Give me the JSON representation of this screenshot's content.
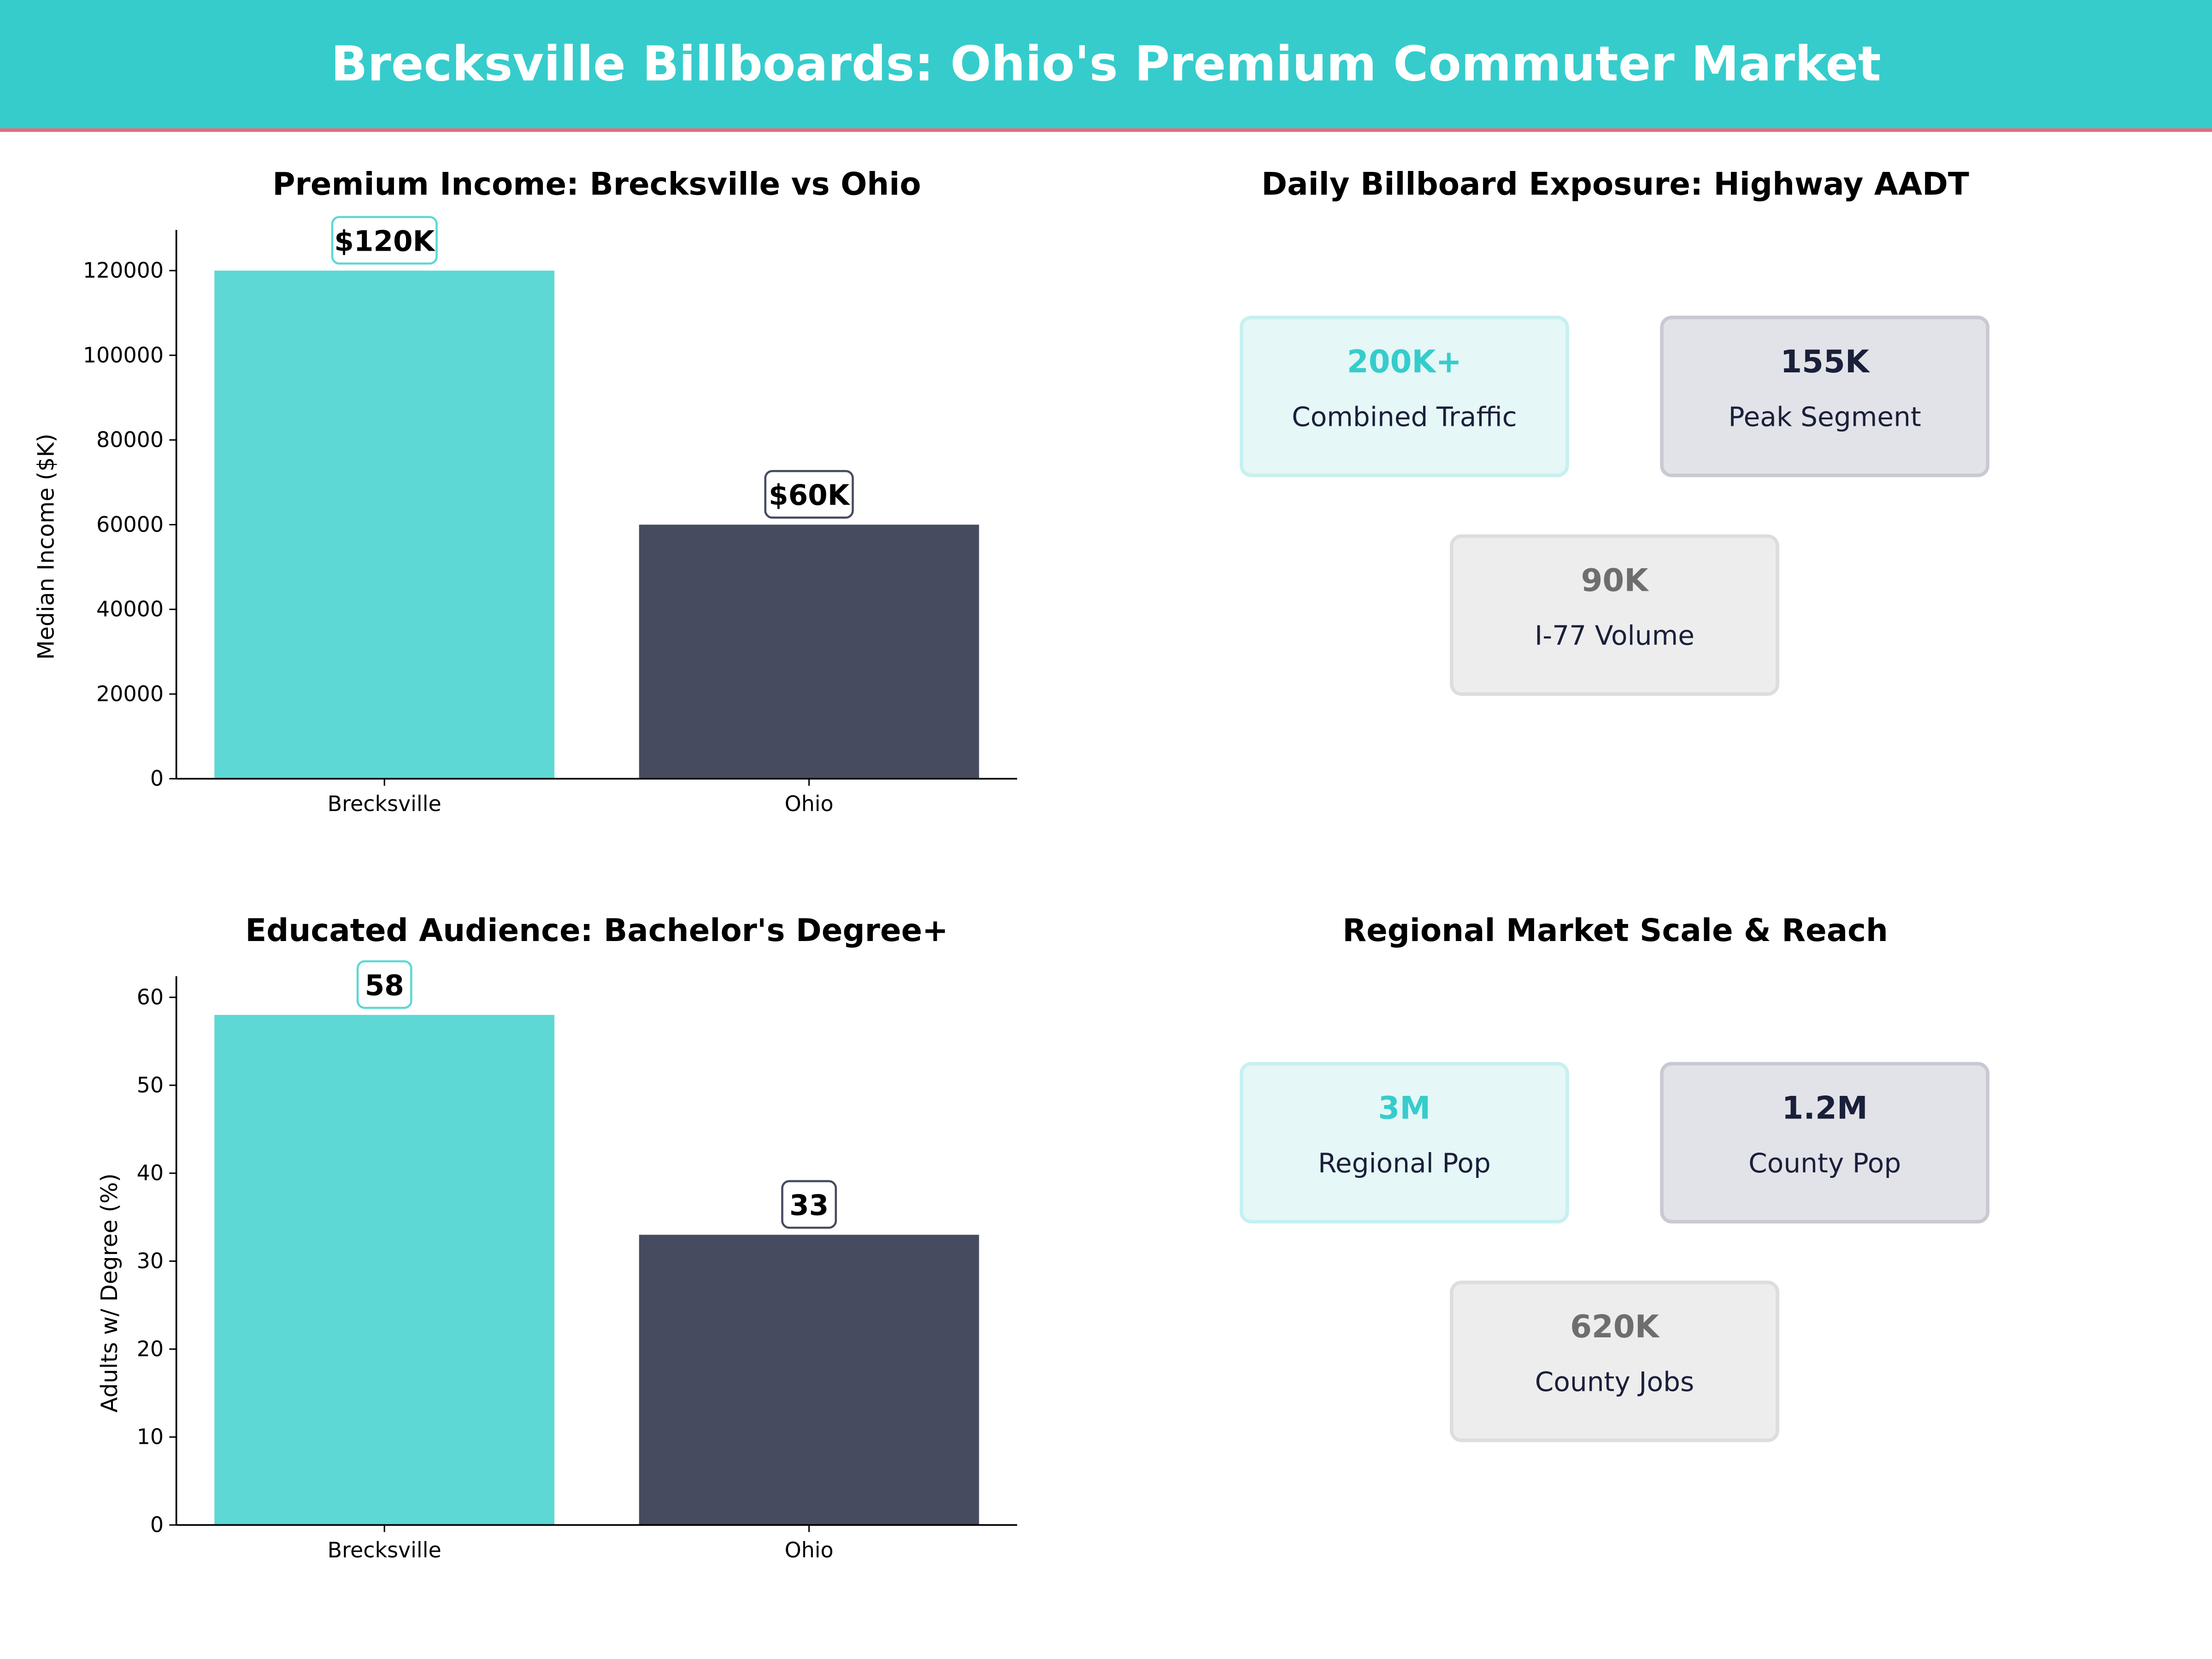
{
  "header": {
    "title": "Brecksville Billboards: Ohio's Premium Commuter Market",
    "bg_color": "#36CCCC",
    "accent_line_color": "#E8697A"
  },
  "colors": {
    "brecksville": "#5DD8D4",
    "ohio": "#464B5F"
  },
  "chart_data": [
    {
      "type": "bar",
      "title": "Premium Income: Brecksville vs Ohio",
      "categories": [
        "Brecksville",
        "Ohio"
      ],
      "values": [
        120000,
        60000
      ],
      "data_labels": [
        "$120K",
        "$60K"
      ],
      "xlabel": "",
      "ylabel": "Median Income ($K)",
      "ylim": [
        0,
        129600
      ],
      "yticks": [
        0,
        20000,
        40000,
        60000,
        80000,
        100000,
        120000
      ],
      "ytick_labels": [
        "0",
        "20000",
        "40000",
        "60000",
        "80000",
        "100000",
        "120000"
      ],
      "grid": false
    },
    {
      "type": "bar",
      "title": "Educated Audience: Bachelor's Degree+",
      "categories": [
        "Brecksville",
        "Ohio"
      ],
      "values": [
        58,
        33
      ],
      "data_labels": [
        "58",
        "33"
      ],
      "xlabel": "",
      "ylabel": "Adults w/ Degree (%)",
      "ylim": [
        0,
        62.4
      ],
      "yticks": [
        0,
        10,
        20,
        30,
        40,
        50,
        60
      ],
      "ytick_labels": [
        "0",
        "10",
        "20",
        "30",
        "40",
        "50",
        "60"
      ],
      "grid": false
    }
  ],
  "panels": [
    {
      "title": "Daily Billboard Exposure: Highway AADT",
      "cards": [
        {
          "value": "200K+",
          "label": "Combined Traffic",
          "style": "teal"
        },
        {
          "value": "155K",
          "label": "Peak Segment",
          "style": "navy"
        },
        {
          "value": "90K",
          "label": "I-77  Volume",
          "style": "gray"
        }
      ]
    },
    {
      "title": "Regional Market Scale & Reach",
      "cards": [
        {
          "value": "3M",
          "label": "Regional Pop",
          "style": "teal"
        },
        {
          "value": "1.2M",
          "label": "County Pop",
          "style": "navy"
        },
        {
          "value": "620K",
          "label": "County Jobs",
          "style": "gray"
        }
      ]
    }
  ],
  "card_styles": {
    "teal": {
      "bg": "#E5F7F7",
      "border": "#C8F0F0",
      "value_color": "#36CCCC"
    },
    "navy": {
      "bg": "#E2E3E8",
      "border": "#C9C9D3",
      "value_color": "#1A1F3A"
    },
    "gray": {
      "bg": "#EDEDED",
      "border": "#DDDDDD",
      "value_color": "#6E6E6E"
    }
  }
}
